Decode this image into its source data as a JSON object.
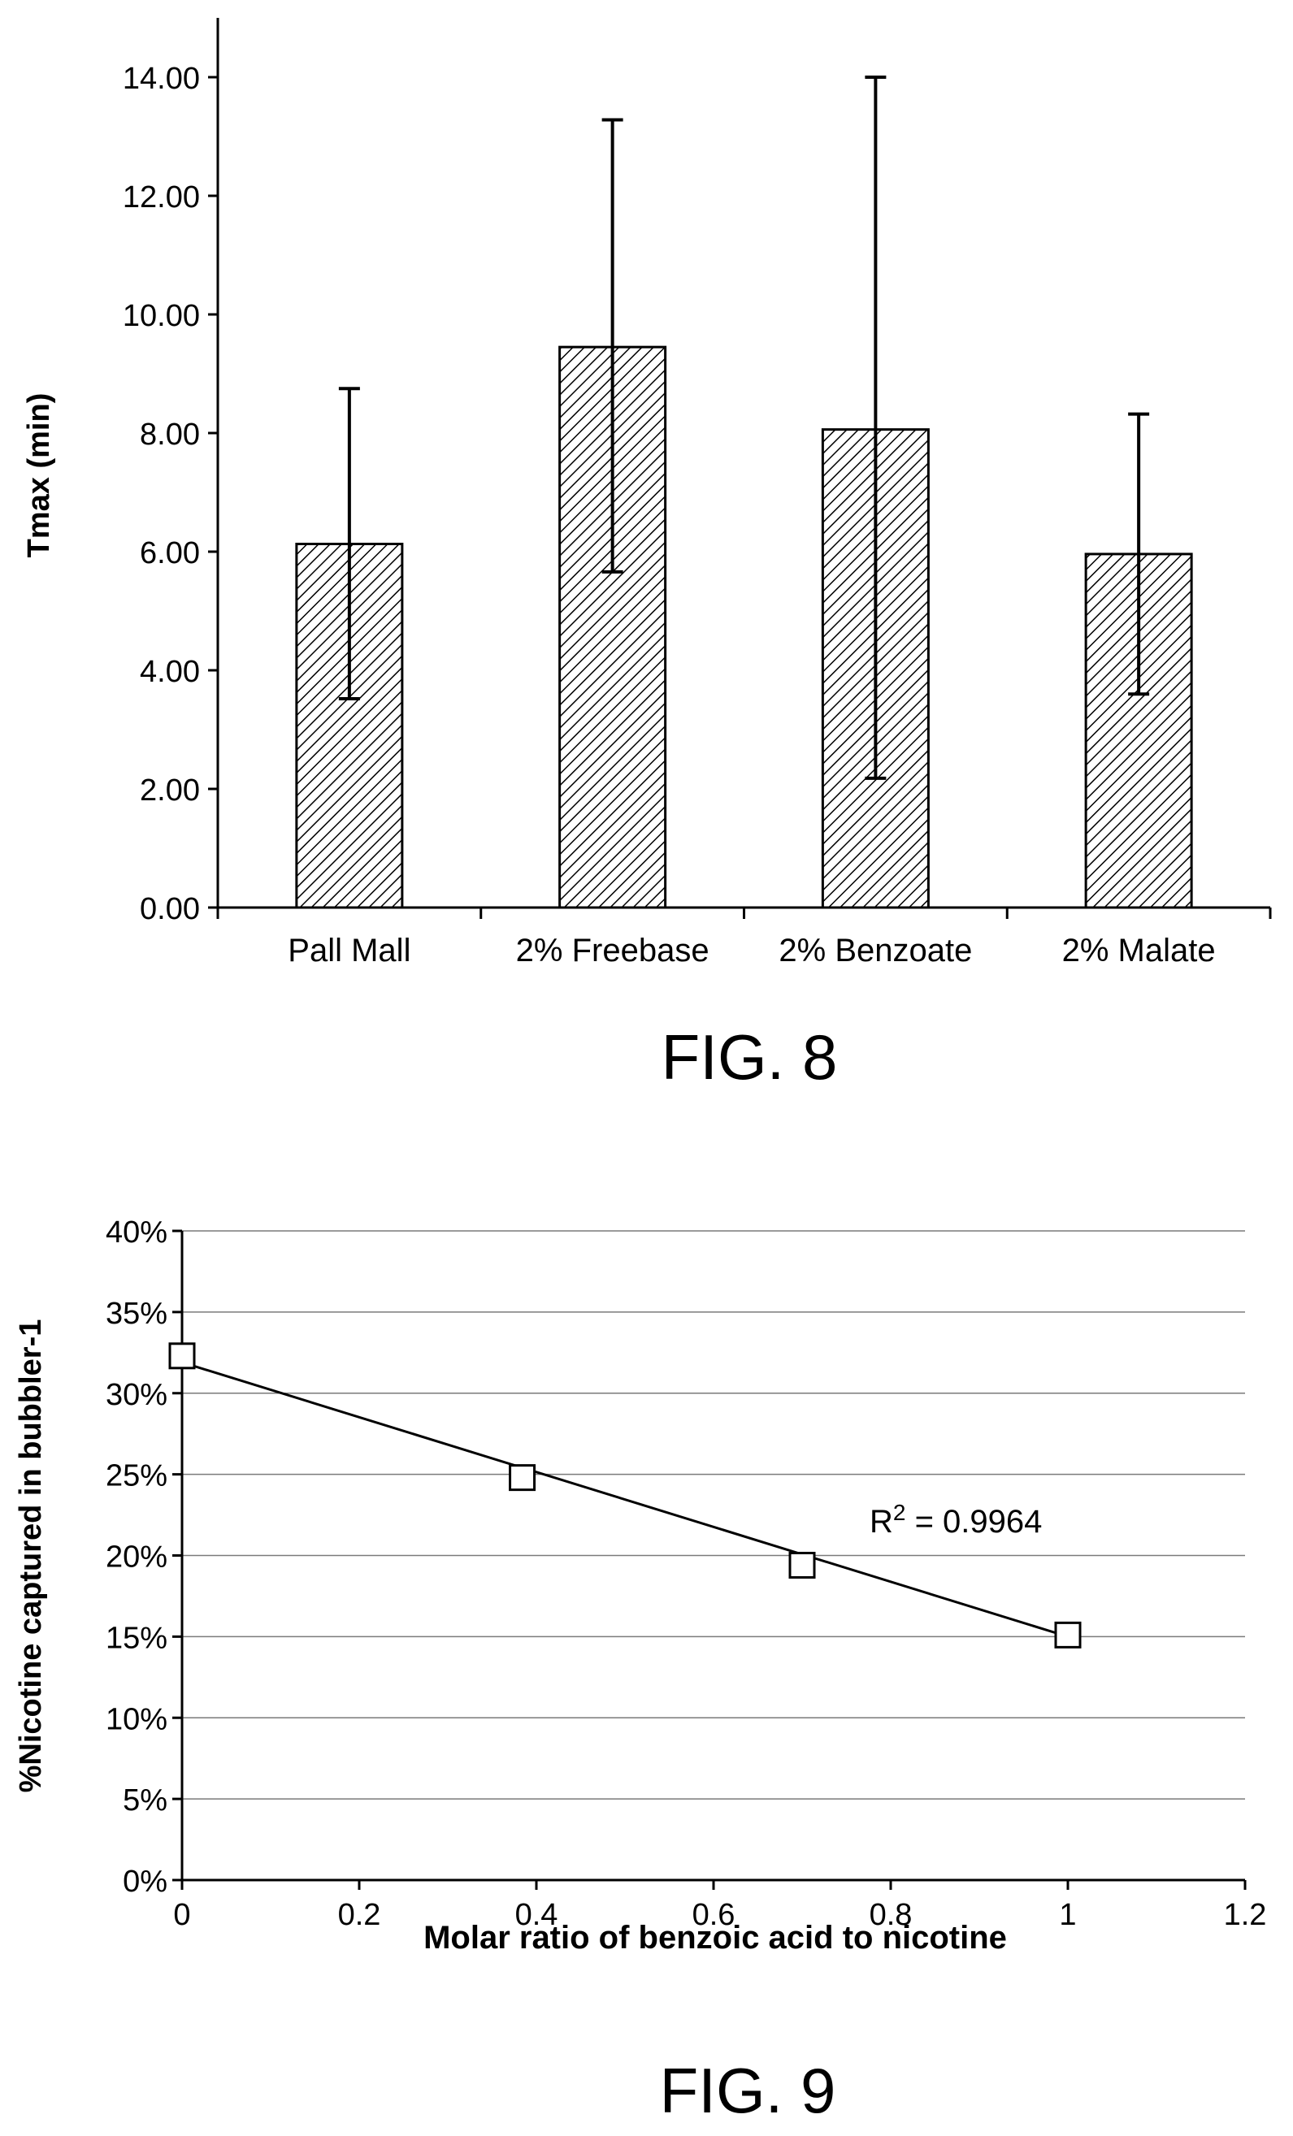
{
  "chart_data": [
    {
      "type": "bar",
      "figure_label": "FIG. 8",
      "ylabel": "Tmax (min)",
      "xlabel": "",
      "categories": [
        "Pall Mall",
        "2% Freebase",
        "2% Benzoate",
        "2% Malate"
      ],
      "values": [
        6.13,
        9.45,
        8.06,
        5.96
      ],
      "error_lower": [
        3.52,
        5.66,
        2.18,
        3.6
      ],
      "error_upper": [
        8.75,
        13.28,
        14.0,
        8.32
      ],
      "ylim": [
        0,
        15
      ],
      "yticks": [
        0,
        2,
        4,
        6,
        8,
        10,
        12,
        14
      ],
      "ytick_labels": [
        "0.00",
        "2.00",
        "4.00",
        "6.00",
        "8.00",
        "10.00",
        "12.00",
        "14.00"
      ],
      "bar_fill": "hatched",
      "grid": false,
      "legend": "none"
    },
    {
      "type": "scatter",
      "figure_label": "FIG. 9",
      "ylabel": "%Nicotine captured in bubbler-1",
      "xlabel": "Molar ratio of benzoic acid to nicotine",
      "x": [
        0,
        0.384,
        0.7,
        1.0
      ],
      "y": [
        32.3,
        24.8,
        19.4,
        15.1
      ],
      "trendline": {
        "x": [
          0,
          1.0
        ],
        "y": [
          31.9,
          15.0
        ]
      },
      "annotation": {
        "r2_prefix": "R",
        "r2_sup": "2",
        "r2_text": " = 0.9964",
        "x": 0.77,
        "y": 22
      },
      "xlim": [
        0,
        1.2
      ],
      "ylim": [
        0,
        40
      ],
      "xticks": [
        0,
        0.2,
        0.4,
        0.6,
        0.8,
        1,
        1.2
      ],
      "xtick_labels": [
        "0",
        "0.2",
        "0.4",
        "0.6",
        "0.8",
        "1",
        "1.2"
      ],
      "yticks": [
        0,
        5,
        10,
        15,
        20,
        25,
        30,
        35,
        40
      ],
      "ytick_labels": [
        "0%",
        "5%",
        "10%",
        "15%",
        "20%",
        "25%",
        "30%",
        "35%",
        "40%"
      ],
      "grid": "horizontal",
      "marker": "hollow-square",
      "legend": "none"
    }
  ]
}
